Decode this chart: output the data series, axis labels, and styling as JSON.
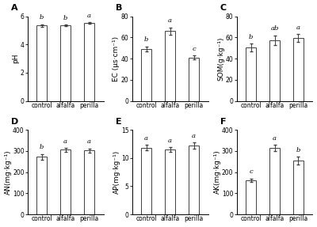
{
  "panels": [
    {
      "label": "A",
      "ylabel": "pH",
      "ylim": [
        0,
        6
      ],
      "yticks": [
        0,
        2,
        4,
        6
      ],
      "categories": [
        "control",
        "alfalfa",
        "perilla"
      ],
      "values": [
        5.35,
        5.35,
        5.52
      ],
      "errors": [
        0.08,
        0.07,
        0.06
      ],
      "sig_labels": [
        "b",
        "b",
        "a"
      ]
    },
    {
      "label": "B",
      "ylabel": "EC (μs·cm⁻¹)",
      "ylim": [
        0,
        80
      ],
      "yticks": [
        0,
        20,
        40,
        60,
        80
      ],
      "categories": [
        "control",
        "alfalfa",
        "perilla"
      ],
      "values": [
        49,
        66,
        41
      ],
      "errors": [
        2.5,
        3.5,
        2.0
      ],
      "sig_labels": [
        "b",
        "a",
        "c"
      ]
    },
    {
      "label": "C",
      "ylabel": "SOM(g·kg⁻¹)",
      "ylim": [
        0,
        80
      ],
      "yticks": [
        0,
        20,
        40,
        60,
        80
      ],
      "categories": [
        "control",
        "alfalfa",
        "perilla"
      ],
      "values": [
        50.5,
        57.5,
        59.5
      ],
      "errors": [
        3.5,
        4.5,
        3.5
      ],
      "sig_labels": [
        "b",
        "ab",
        "a"
      ]
    },
    {
      "label": "D",
      "ylabel": "AN(mg·kg⁻¹)",
      "ylim": [
        0,
        400
      ],
      "yticks": [
        0,
        100,
        200,
        300,
        400
      ],
      "categories": [
        "control",
        "alfalfa",
        "perilla"
      ],
      "values": [
        272,
        305,
        302
      ],
      "errors": [
        14,
        10,
        10
      ],
      "sig_labels": [
        "b",
        "a",
        "a"
      ]
    },
    {
      "label": "E",
      "ylabel": "AP(mg·kg⁻¹)",
      "ylim": [
        0,
        15
      ],
      "yticks": [
        0,
        5,
        10,
        15
      ],
      "categories": [
        "control",
        "alfalfa",
        "perilla"
      ],
      "values": [
        11.8,
        11.5,
        12.2
      ],
      "errors": [
        0.5,
        0.4,
        0.5
      ],
      "sig_labels": [
        "a",
        "a",
        "a"
      ]
    },
    {
      "label": "F",
      "ylabel": "AK(mg·kg⁻¹)",
      "ylim": [
        0,
        400
      ],
      "yticks": [
        0,
        100,
        200,
        300,
        400
      ],
      "categories": [
        "control",
        "alfalfa",
        "perilla"
      ],
      "values": [
        162,
        315,
        255
      ],
      "errors": [
        8,
        15,
        18
      ],
      "sig_labels": [
        "c",
        "a",
        "b"
      ]
    }
  ],
  "bar_color": "#ffffff",
  "bar_edgecolor": "#404040",
  "bar_width": 0.42,
  "fig_width": 4.0,
  "fig_height": 2.87,
  "dpi": 100,
  "label_fontsize": 6.5,
  "tick_fontsize": 5.5,
  "sig_fontsize": 6.0,
  "panel_label_fontsize": 8,
  "errorbar_capsize": 1.5,
  "errorbar_linewidth": 0.7
}
